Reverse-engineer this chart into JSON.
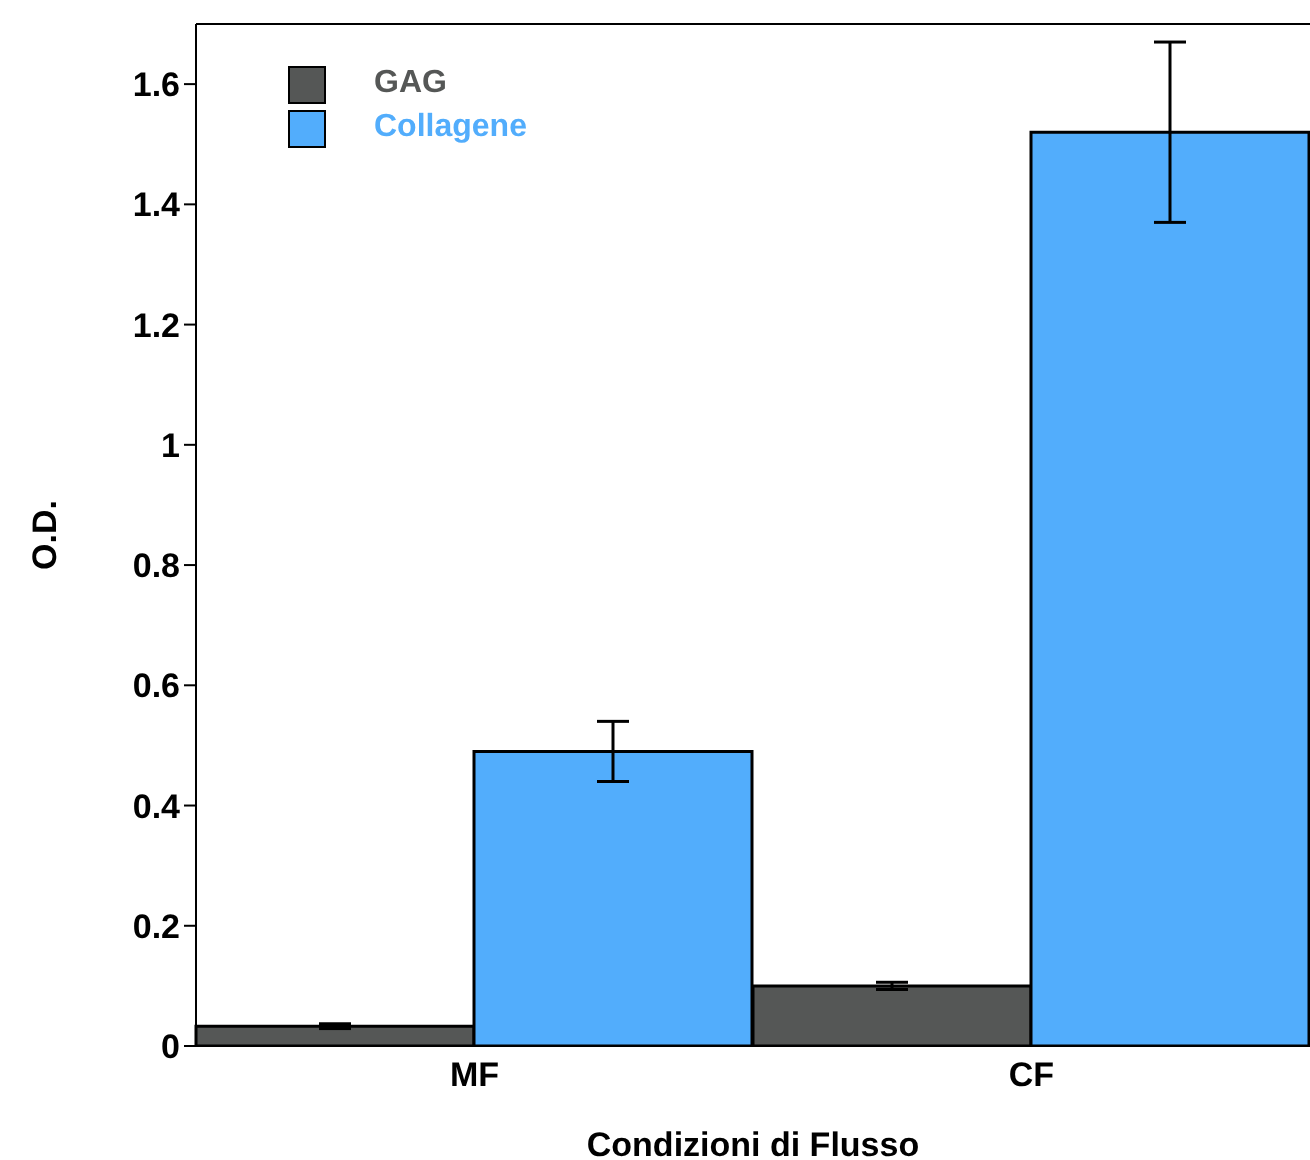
{
  "chart_data": {
    "type": "bar",
    "xlabel": "Condizioni di Flusso",
    "ylabel": "O.D.",
    "categories": [
      "MF",
      "CF"
    ],
    "series": [
      {
        "name": "GAG",
        "color": "#555756",
        "values": [
          0.033,
          0.1
        ],
        "errors": [
          0.004,
          0.006
        ]
      },
      {
        "name": "Collagene",
        "color": "#52adfc",
        "values": [
          0.49,
          1.52
        ],
        "errors": [
          0.05,
          0.15
        ]
      }
    ],
    "ylim": [
      0,
      1.7
    ],
    "yticks": [
      0,
      0.2,
      0.4,
      0.6,
      0.8,
      1,
      1.2,
      1.4,
      1.6
    ],
    "grid": false,
    "legend": "top left"
  }
}
